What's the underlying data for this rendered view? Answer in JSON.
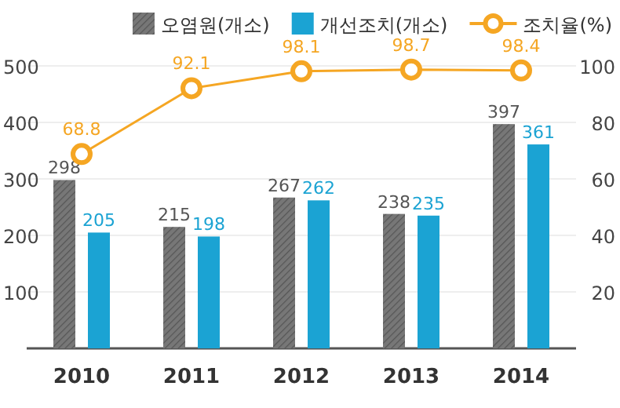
{
  "chart_data": {
    "type": "bar",
    "categories": [
      "2010",
      "2011",
      "2012",
      "2013",
      "2014"
    ],
    "series": [
      {
        "name": "오염원(개소)",
        "color": "#777777",
        "values": [
          298,
          215,
          267,
          238,
          397
        ]
      },
      {
        "name": "개선조치(개소)",
        "color": "#1ba3d3",
        "values": [
          205,
          198,
          262,
          235,
          361
        ]
      },
      {
        "name": "조치율(%)",
        "type": "line",
        "axis": "y2",
        "color": "#f5a623",
        "marker": "circle",
        "values": [
          68.8,
          92.1,
          98.1,
          98.7,
          98.4
        ]
      }
    ],
    "ylim": [
      0,
      500
    ],
    "yticks": [
      100,
      200,
      300,
      400,
      500
    ],
    "y2lim": [
      0,
      100
    ],
    "y2ticks": [
      20,
      40,
      60,
      80,
      100
    ],
    "grid": "y",
    "legend": "top right",
    "data_labels": true
  }
}
